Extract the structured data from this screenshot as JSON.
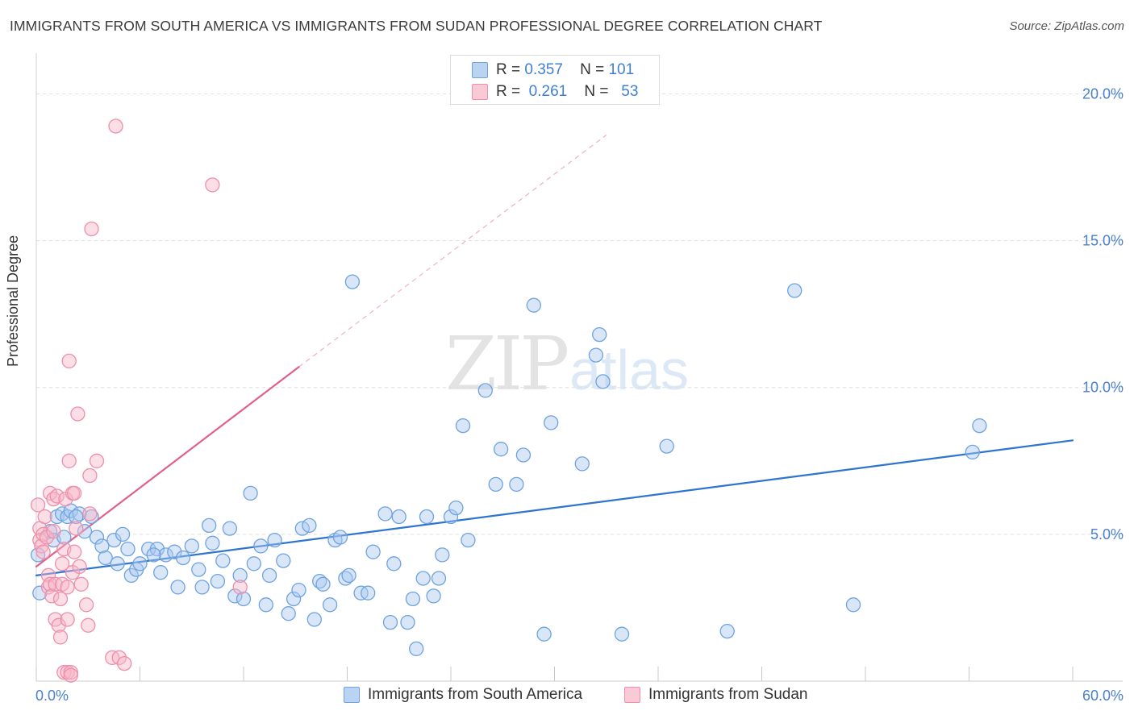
{
  "title": "IMMIGRANTS FROM SOUTH AMERICA VS IMMIGRANTS FROM SUDAN PROFESSIONAL DEGREE CORRELATION CHART",
  "source": "Source: ZipAtlas.com",
  "watermark": {
    "zip": "ZIP",
    "atlas": "atlas"
  },
  "legend": {
    "rows": [
      {
        "r_label": "R =",
        "r_value": "0.357",
        "n_label": "N =",
        "n_value": "101",
        "color": "#a8c8f0"
      },
      {
        "r_label": "R =",
        "r_value": "0.261",
        "n_label": "N =",
        "n_value": "53",
        "color": "#f7b6c8"
      }
    ]
  },
  "bottom_legend": [
    {
      "label": "Immigrants from South America",
      "color": "#a8c8f0"
    },
    {
      "label": "Immigrants from Sudan",
      "color": "#f7b6c8"
    }
  ],
  "chart_data": {
    "type": "scatter",
    "title": "IMMIGRANTS FROM SOUTH AMERICA VS IMMIGRANTS FROM SUDAN PROFESSIONAL DEGREE CORRELATION CHART",
    "xlabel": "",
    "ylabel": "Professional Degree",
    "xlim": [
      0,
      60
    ],
    "ylim": [
      0,
      21
    ],
    "x_tick_labels": [
      "0.0%",
      "60.0%"
    ],
    "y_ticks": [
      5,
      10,
      15,
      20
    ],
    "y_tick_labels": [
      "5.0%",
      "10.0%",
      "15.0%",
      "20.0%"
    ],
    "grid": true,
    "legend_position": "top-center",
    "series": [
      {
        "name": "Immigrants from South America",
        "color": "#6fa3e0",
        "fill": "#a8c8f0",
        "R": 0.357,
        "N": 101,
        "trend": {
          "x": [
            0,
            60
          ],
          "y": [
            3.6,
            8.2
          ],
          "style": "solid",
          "color": "#2e74d0"
        },
        "points": [
          [
            0.1,
            4.3
          ],
          [
            0.2,
            3.0
          ],
          [
            0.8,
            5.1
          ],
          [
            1.0,
            4.8
          ],
          [
            1.2,
            5.6
          ],
          [
            1.5,
            5.7
          ],
          [
            1.8,
            5.6
          ],
          [
            2.0,
            5.8
          ],
          [
            2.5,
            5.7
          ],
          [
            3.2,
            5.6
          ],
          [
            2.8,
            5.1
          ],
          [
            3.5,
            4.9
          ],
          [
            3.8,
            4.6
          ],
          [
            4.0,
            4.2
          ],
          [
            4.5,
            4.8
          ],
          [
            4.7,
            4.0
          ],
          [
            5.0,
            5.0
          ],
          [
            5.3,
            4.5
          ],
          [
            5.5,
            3.6
          ],
          [
            5.8,
            3.8
          ],
          [
            6.0,
            4.0
          ],
          [
            6.5,
            4.5
          ],
          [
            7.0,
            4.5
          ],
          [
            7.2,
            3.7
          ],
          [
            7.5,
            4.3
          ],
          [
            8.0,
            4.4
          ],
          [
            8.2,
            3.2
          ],
          [
            8.5,
            4.2
          ],
          [
            9.0,
            4.6
          ],
          [
            9.4,
            3.8
          ],
          [
            9.6,
            3.2
          ],
          [
            10.0,
            5.3
          ],
          [
            10.2,
            4.7
          ],
          [
            10.5,
            3.4
          ],
          [
            10.8,
            4.1
          ],
          [
            11.2,
            5.2
          ],
          [
            11.5,
            2.9
          ],
          [
            11.8,
            3.6
          ],
          [
            12.0,
            2.8
          ],
          [
            12.4,
            6.4
          ],
          [
            12.6,
            4.0
          ],
          [
            13.0,
            4.6
          ],
          [
            13.3,
            2.6
          ],
          [
            13.5,
            3.6
          ],
          [
            13.8,
            4.8
          ],
          [
            14.3,
            4.1
          ],
          [
            14.6,
            2.3
          ],
          [
            14.9,
            2.8
          ],
          [
            15.2,
            3.1
          ],
          [
            15.4,
            5.2
          ],
          [
            15.8,
            5.3
          ],
          [
            16.1,
            2.1
          ],
          [
            16.4,
            3.4
          ],
          [
            16.6,
            3.3
          ],
          [
            17.0,
            2.6
          ],
          [
            17.3,
            4.8
          ],
          [
            17.6,
            4.9
          ],
          [
            17.9,
            3.5
          ],
          [
            18.1,
            3.6
          ],
          [
            18.3,
            13.6
          ],
          [
            18.8,
            3.0
          ],
          [
            19.2,
            3.0
          ],
          [
            19.5,
            4.4
          ],
          [
            20.2,
            5.7
          ],
          [
            20.5,
            2.0
          ],
          [
            20.7,
            4.0
          ],
          [
            21.0,
            5.6
          ],
          [
            21.5,
            2.0
          ],
          [
            21.8,
            2.8
          ],
          [
            22.0,
            1.1
          ],
          [
            22.4,
            3.5
          ],
          [
            22.6,
            5.6
          ],
          [
            23.0,
            2.9
          ],
          [
            23.3,
            3.5
          ],
          [
            23.5,
            4.3
          ],
          [
            24.0,
            5.6
          ],
          [
            24.3,
            5.9
          ],
          [
            24.7,
            8.7
          ],
          [
            25.0,
            4.8
          ],
          [
            26.0,
            9.9
          ],
          [
            26.6,
            6.7
          ],
          [
            26.9,
            7.9
          ],
          [
            27.8,
            6.7
          ],
          [
            28.2,
            7.7
          ],
          [
            28.8,
            12.8
          ],
          [
            29.4,
            1.6
          ],
          [
            29.8,
            8.8
          ],
          [
            31.6,
            7.4
          ],
          [
            32.4,
            11.1
          ],
          [
            32.6,
            11.8
          ],
          [
            32.8,
            10.2
          ],
          [
            33.9,
            1.6
          ],
          [
            36.5,
            8.0
          ],
          [
            40.0,
            1.7
          ],
          [
            43.9,
            13.3
          ],
          [
            47.3,
            2.6
          ],
          [
            54.2,
            7.8
          ],
          [
            54.6,
            8.7
          ],
          [
            1.6,
            4.9
          ],
          [
            2.3,
            5.6
          ],
          [
            6.8,
            4.3
          ]
        ]
      },
      {
        "name": "Immigrants from Sudan",
        "color": "#ee8fab",
        "fill": "#f7b6c8",
        "R": 0.261,
        "N": 53,
        "trend": {
          "x": [
            0,
            15.2
          ],
          "y": [
            3.9,
            10.7
          ],
          "style": "solid",
          "color": "#e0608c",
          "extension": {
            "x": [
              15.2,
              33.0
            ],
            "y": [
              10.7,
              18.6
            ],
            "style": "dashed"
          }
        },
        "points": [
          [
            0.1,
            6.0
          ],
          [
            0.2,
            5.2
          ],
          [
            0.2,
            4.8
          ],
          [
            0.3,
            4.6
          ],
          [
            0.4,
            5.0
          ],
          [
            0.4,
            4.4
          ],
          [
            0.5,
            5.6
          ],
          [
            0.6,
            4.9
          ],
          [
            0.7,
            3.6
          ],
          [
            0.7,
            3.2
          ],
          [
            0.8,
            6.4
          ],
          [
            0.8,
            3.3
          ],
          [
            0.9,
            2.9
          ],
          [
            1.0,
            6.2
          ],
          [
            1.0,
            5.1
          ],
          [
            1.1,
            3.3
          ],
          [
            1.1,
            2.1
          ],
          [
            1.2,
            6.3
          ],
          [
            1.3,
            1.9
          ],
          [
            1.4,
            2.8
          ],
          [
            1.4,
            1.5
          ],
          [
            1.5,
            4.0
          ],
          [
            1.5,
            3.3
          ],
          [
            1.6,
            4.5
          ],
          [
            1.6,
            0.3
          ],
          [
            1.7,
            6.2
          ],
          [
            1.8,
            3.2
          ],
          [
            1.8,
            2.1
          ],
          [
            1.8,
            0.3
          ],
          [
            1.9,
            7.5
          ],
          [
            1.9,
            10.9
          ],
          [
            2.0,
            0.3
          ],
          [
            2.1,
            6.4
          ],
          [
            2.1,
            3.7
          ],
          [
            2.2,
            6.4
          ],
          [
            2.2,
            4.4
          ],
          [
            2.3,
            5.2
          ],
          [
            2.4,
            9.1
          ],
          [
            2.5,
            3.9
          ],
          [
            2.6,
            3.3
          ],
          [
            2.9,
            2.6
          ],
          [
            3.0,
            1.9
          ],
          [
            3.1,
            5.7
          ],
          [
            3.1,
            7.0
          ],
          [
            3.2,
            15.4
          ],
          [
            3.5,
            7.5
          ],
          [
            4.4,
            0.8
          ],
          [
            4.6,
            18.9
          ],
          [
            4.8,
            0.8
          ],
          [
            5.1,
            0.6
          ],
          [
            10.2,
            16.9
          ],
          [
            11.8,
            3.2
          ],
          [
            2.0,
            0.2
          ]
        ]
      }
    ]
  }
}
